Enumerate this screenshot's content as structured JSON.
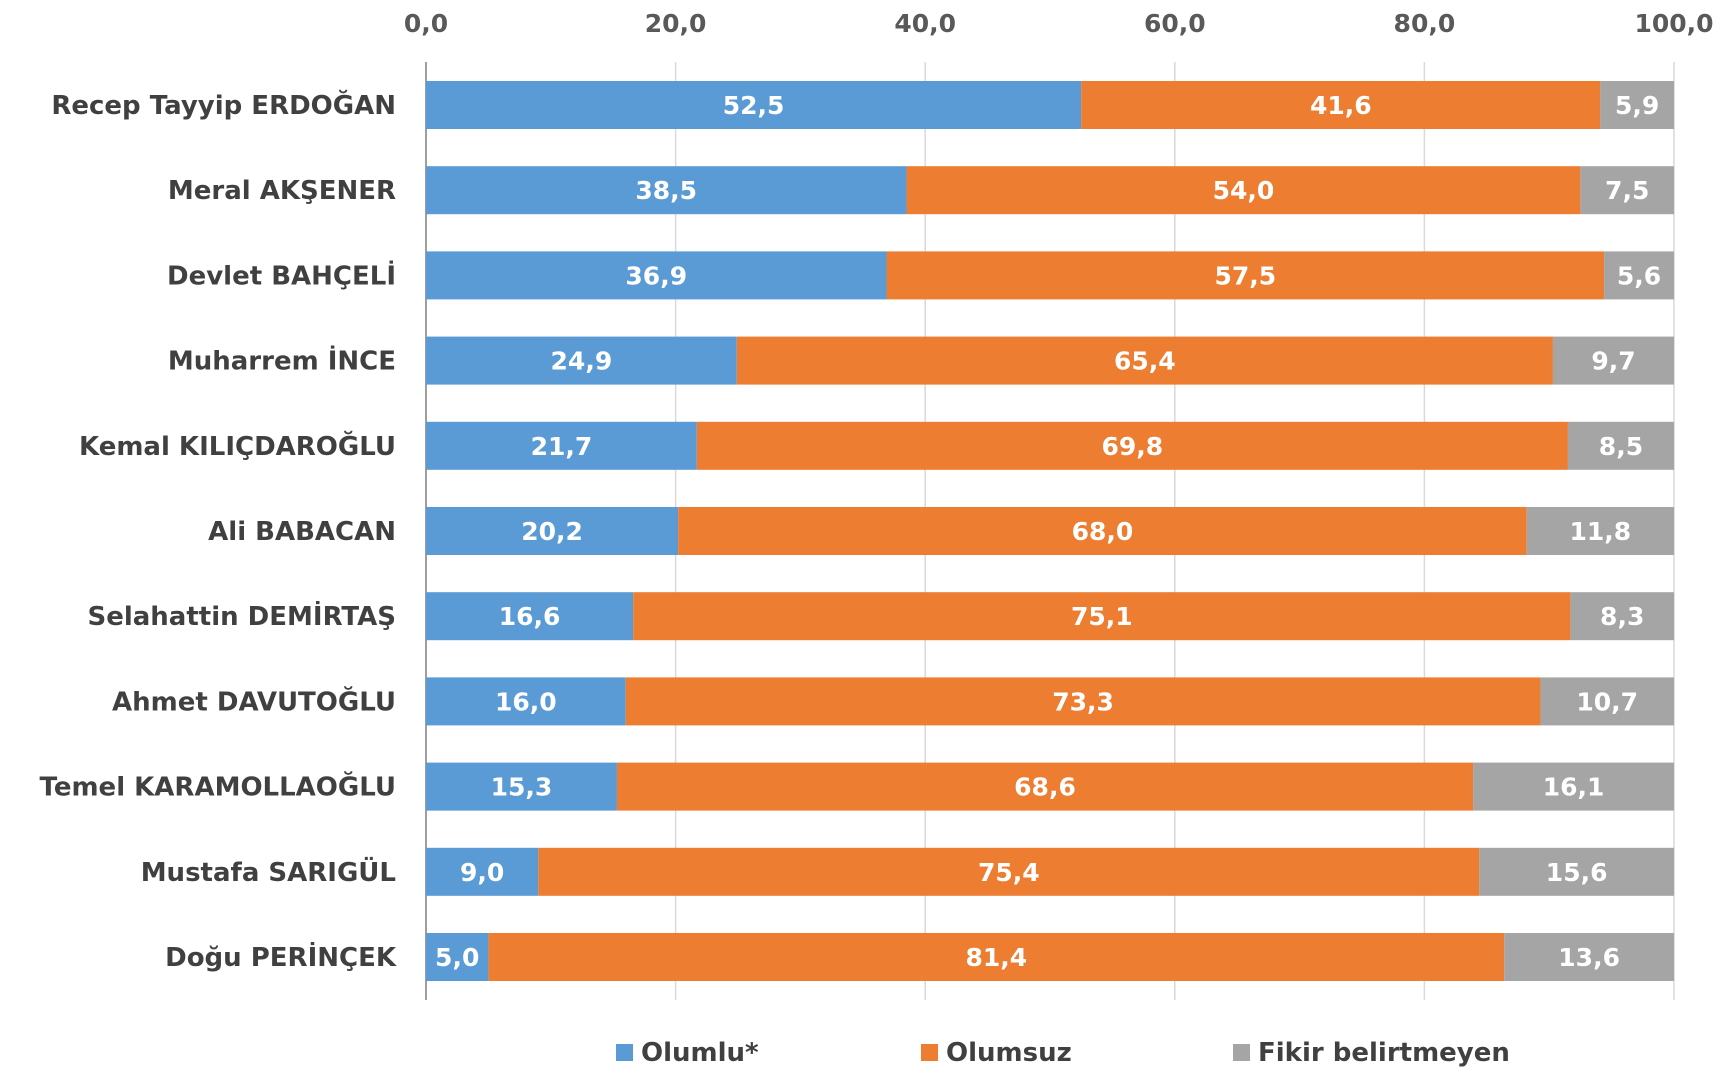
{
  "chart_data": {
    "type": "bar",
    "orientation": "horizontal",
    "stacked": true,
    "title": "",
    "xlabel": "",
    "ylabel": "",
    "xlim": [
      0,
      100
    ],
    "x_ticks": [
      "0,0",
      "20,0",
      "40,0",
      "60,0",
      "80,0",
      "100,0"
    ],
    "x_axis_position": "top",
    "grid": true,
    "legend_position": "bottom",
    "categories": [
      "Recep Tayyip ERDOĞAN",
      "Meral AKŞENER",
      "Devlet BAHÇELİ",
      "Muharrem İNCE",
      "Kemal KILIÇDAROĞLU",
      "Ali BABACAN",
      "Selahattin DEMİRTAŞ",
      "Ahmet DAVUTOĞLU",
      "Temel KARAMOLLAOĞLU",
      "Mustafa SARIGÜL",
      "Doğu PERİNÇEK"
    ],
    "series": [
      {
        "name": "Olumlu*",
        "color": "#5b9bd5",
        "values": [
          52.5,
          38.5,
          36.9,
          24.9,
          21.7,
          20.2,
          16.6,
          16.0,
          15.3,
          9.0,
          5.0
        ],
        "labels": [
          "52,5",
          "38,5",
          "36,9",
          "24,9",
          "21,7",
          "20,2",
          "16,6",
          "16,0",
          "15,3",
          "9,0",
          "5,0"
        ]
      },
      {
        "name": "Olumsuz",
        "color": "#ed7d31",
        "values": [
          41.6,
          54.0,
          57.5,
          65.4,
          69.8,
          68.0,
          75.1,
          73.3,
          68.6,
          75.4,
          81.4
        ],
        "labels": [
          "41,6",
          "54,0",
          "57,5",
          "65,4",
          "69,8",
          "68,0",
          "75,1",
          "73,3",
          "68,6",
          "75,4",
          "81,4"
        ]
      },
      {
        "name": "Fikir belirtmeyen",
        "color": "#a5a5a5",
        "values": [
          5.9,
          7.5,
          5.6,
          9.7,
          8.5,
          11.8,
          8.3,
          10.7,
          16.1,
          15.6,
          13.6
        ],
        "labels": [
          "5,9",
          "7,5",
          "5,6",
          "9,7",
          "8,5",
          "11,8",
          "8,3",
          "10,7",
          "16,1",
          "15,6",
          "13,6"
        ]
      }
    ]
  }
}
